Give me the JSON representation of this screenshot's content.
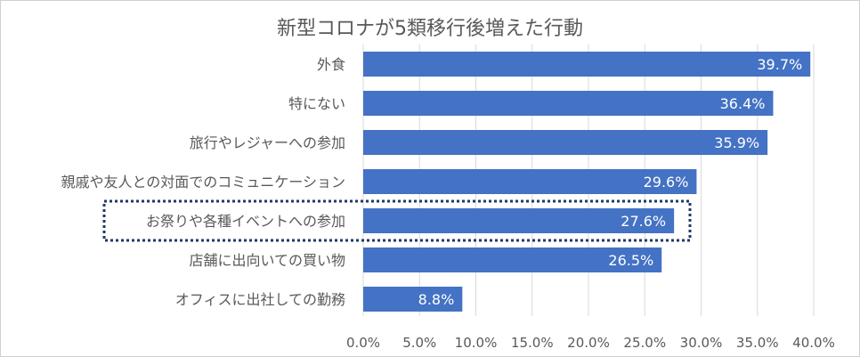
{
  "chart_data": {
    "type": "bar",
    "orientation": "horizontal",
    "title": "新型コロナが5類移行後増えた行動",
    "categories": [
      "外食",
      "特にない",
      "旅行やレジャーへの参加",
      "親戚や友人との対面でのコミュニケーション",
      "お祭りや各種イベントへの参加",
      "店舗に出向いての買い物",
      "オフィスに出社しての勤務"
    ],
    "values": [
      39.7,
      36.4,
      35.9,
      29.6,
      27.6,
      26.5,
      8.8
    ],
    "data_labels": [
      "39.7%",
      "36.4%",
      "35.9%",
      "29.6%",
      "27.6%",
      "26.5%",
      "8.8%"
    ],
    "xlim": [
      0,
      40
    ],
    "x_ticks": [
      0,
      5,
      10,
      15,
      20,
      25,
      30,
      35,
      40
    ],
    "x_tick_labels": [
      "0.0%",
      "5.0%",
      "10.0%",
      "15.0%",
      "20.0%",
      "25.0%",
      "30.0%",
      "35.0%",
      "40.0%"
    ],
    "grid": "vertical",
    "highlighted_category": "お祭りや各種イベントへの参加",
    "bar_color": "#4472c4",
    "label_color": "#ffffff",
    "axis_text_color": "#595959",
    "grid_color": "#d9d9d9",
    "highlight_border_color": "#1f3864"
  }
}
